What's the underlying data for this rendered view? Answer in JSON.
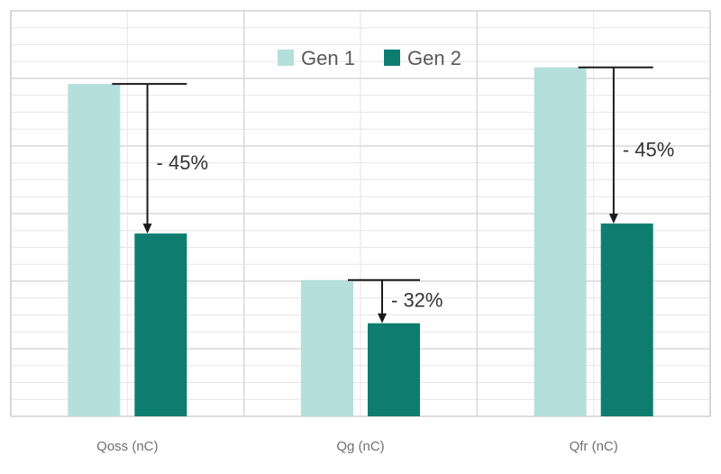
{
  "chart_data": {
    "type": "bar",
    "categories": [
      "Qoss (nC)",
      "Qg (nC)",
      "Qfr (nC)"
    ],
    "series": [
      {
        "name": "Gen 1",
        "values": [
          100,
          41,
          105
        ]
      },
      {
        "name": "Gen 2",
        "values": [
          55,
          28,
          58
        ]
      }
    ],
    "annotations": [
      "- 45%",
      "- 32%",
      "- 45%"
    ],
    "ylim": [
      0,
      122
    ],
    "grid": true,
    "legend": "top-center",
    "colors": {
      "Gen 1": "#b5dfda",
      "Gen 2": "#0e7d70",
      "arrow": "#1a1a1a",
      "grid": "#e6e6e6"
    }
  }
}
